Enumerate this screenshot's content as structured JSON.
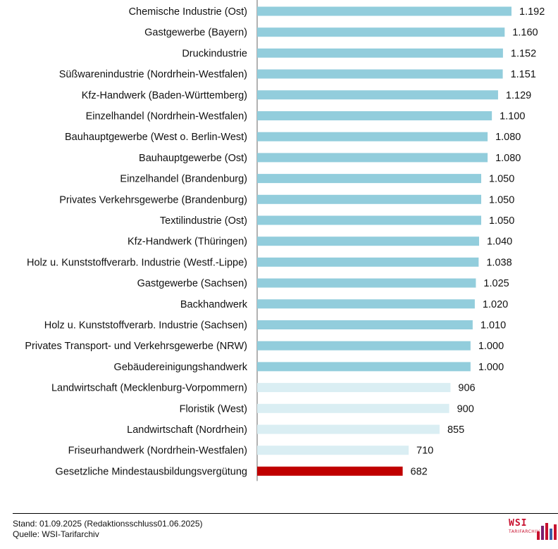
{
  "chart_data": {
    "type": "bar",
    "orientation": "horizontal",
    "categories": [
      "Chemische Industrie (Ost)",
      "Gastgewerbe (Bayern)",
      "Druckindustrie",
      "Süßwarenindustrie (Nordrhein-Westfalen)",
      "Kfz-Handwerk (Baden-Württemberg)",
      "Einzelhandel (Nordrhein-Westfalen)",
      "Bauhauptgewerbe (West o. Berlin-West)",
      "Bauhauptgewerbe (Ost)",
      "Einzelhandel (Brandenburg)",
      "Privates Verkehrsgewerbe  (Brandenburg)",
      "Textilindustrie (Ost)",
      "Kfz-Handwerk (Thüringen)",
      "Holz u. Kunststoffverarb. Industrie (Westf.-Lippe)",
      "Gastgewerbe (Sachsen)",
      "Backhandwerk",
      "Holz u. Kunststoffverarb. Industrie (Sachsen)",
      "Privates Transport- und Verkehrsgewerbe (NRW)",
      "Gebäudereinigungshandwerk",
      "Landwirtschaft (Mecklenburg-Vorpommern)",
      "Floristik (West)",
      "Landwirtschaft (Nordrhein)",
      "Friseurhandwerk (Nordrhein-Westfalen)",
      "Gesetzliche Mindestausbildungsvergütung"
    ],
    "values": [
      1192,
      1160,
      1152,
      1151,
      1129,
      1100,
      1080,
      1080,
      1050,
      1050,
      1050,
      1040,
      1038,
      1025,
      1020,
      1010,
      1000,
      1000,
      906,
      900,
      855,
      710,
      682
    ],
    "value_labels": [
      "1.192",
      "1.160",
      "1.152",
      "1.151",
      "1.129",
      "1.100",
      "1.080",
      "1.080",
      "1.050",
      "1.050",
      "1.050",
      "1.040",
      "1.038",
      "1.025",
      "1.020",
      "1.010",
      "1.000",
      "1.000",
      "906",
      "900",
      "855",
      "710",
      "682"
    ],
    "bar_colors": [
      "#92cddc",
      "#92cddc",
      "#92cddc",
      "#92cddc",
      "#92cddc",
      "#92cddc",
      "#92cddc",
      "#92cddc",
      "#92cddc",
      "#92cddc",
      "#92cddc",
      "#92cddc",
      "#92cddc",
      "#92cddc",
      "#92cddc",
      "#92cddc",
      "#92cddc",
      "#92cddc",
      "#daeef3",
      "#daeef3",
      "#daeef3",
      "#daeef3",
      "#c00000"
    ],
    "xlim": [
      0,
      1192
    ],
    "grid": false,
    "title": "",
    "xlabel": "",
    "ylabel": ""
  },
  "footer": {
    "stand": "Stand: 01.09.2025 (Redaktionsschluss01.06.2025)",
    "quelle": "Quelle: WSI-Tarifarchiv"
  },
  "logo": {
    "name": "WSI",
    "sub": "TARIFARCHIV",
    "color": "#c8102e"
  }
}
